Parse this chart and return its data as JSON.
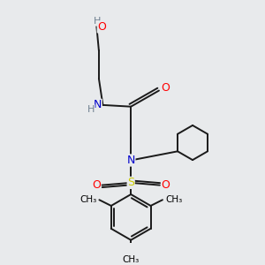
{
  "bg_color": "#e8eaec",
  "atom_colors": {
    "C": "#000000",
    "H": "#708090",
    "N": "#0000cc",
    "O": "#ff0000",
    "S": "#cccc00"
  },
  "bond_color": "#1a1a1a",
  "bond_width": 1.4,
  "fig_size": [
    3.0,
    3.0
  ],
  "dpi": 100,
  "xlim": [
    0,
    10
  ],
  "ylim": [
    0,
    10
  ]
}
